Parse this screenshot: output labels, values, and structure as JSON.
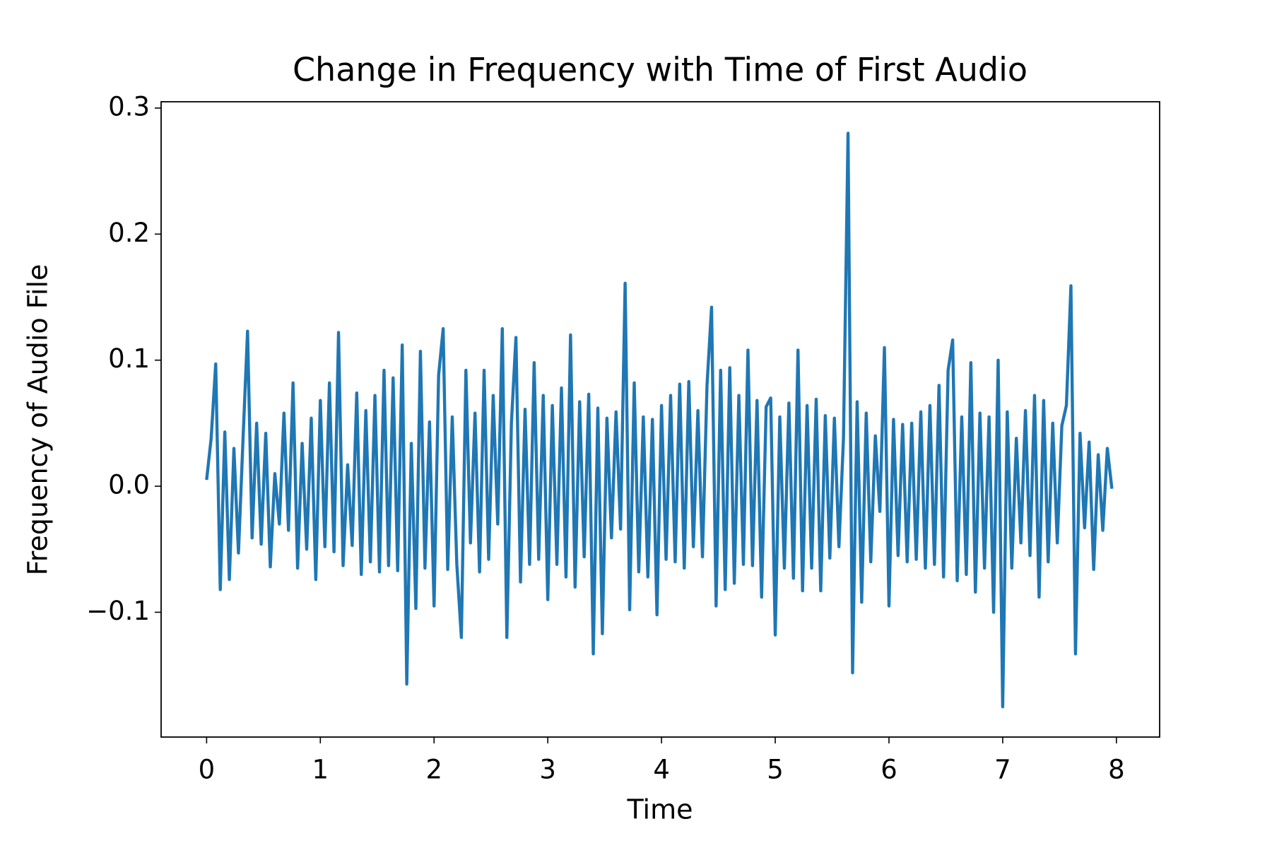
{
  "chart_data": {
    "type": "line",
    "title": "Change in Frequency with Time of First Audio",
    "x_label": "Time",
    "y_label": "Frequency of Audio File",
    "color": "#1f77b4",
    "xlim": [
      -0.4,
      8.38
    ],
    "ylim": [
      -0.199,
      0.305
    ],
    "xticks": [
      0,
      1,
      2,
      3,
      4,
      5,
      6,
      7,
      8
    ],
    "yticks": [
      {
        "value": -0.1,
        "label": "−0.1"
      },
      {
        "value": 0,
        "label": "0.0"
      },
      0.1,
      0.2,
      0.3
    ],
    "x": [
      0,
      0.04,
      0.08,
      0.12,
      0.16,
      0.2,
      0.24,
      0.28,
      0.32,
      0.36,
      0.4,
      0.44,
      0.48,
      0.52,
      0.56,
      0.6,
      0.64,
      0.68,
      0.72,
      0.76,
      0.8,
      0.84,
      0.88,
      0.92,
      0.96,
      1,
      1.04,
      1.08,
      1.12,
      1.16,
      1.2,
      1.24,
      1.28,
      1.32,
      1.36,
      1.4,
      1.44,
      1.48,
      1.52,
      1.56,
      1.6,
      1.64,
      1.68,
      1.72,
      1.76,
      1.8,
      1.84,
      1.88,
      1.92,
      1.96,
      2,
      2.04,
      2.08,
      2.12,
      2.16,
      2.2,
      2.24,
      2.28,
      2.32,
      2.36,
      2.4,
      2.44,
      2.48,
      2.52,
      2.56,
      2.6,
      2.64,
      2.68,
      2.72,
      2.76,
      2.8,
      2.84,
      2.88,
      2.92,
      2.96,
      3,
      3.04,
      3.08,
      3.12,
      3.16,
      3.2,
      3.24,
      3.28,
      3.32,
      3.36,
      3.4,
      3.44,
      3.48,
      3.52,
      3.56,
      3.6,
      3.64,
      3.68,
      3.72,
      3.76,
      3.8,
      3.84,
      3.88,
      3.92,
      3.96,
      4,
      4.04,
      4.08,
      4.12,
      4.16,
      4.2,
      4.24,
      4.28,
      4.32,
      4.36,
      4.4,
      4.44,
      4.48,
      4.52,
      4.56,
      4.6,
      4.64,
      4.68,
      4.72,
      4.76,
      4.8,
      4.84,
      4.88,
      4.92,
      4.96,
      5,
      5.04,
      5.08,
      5.12,
      5.16,
      5.2,
      5.24,
      5.28,
      5.32,
      5.36,
      5.4,
      5.44,
      5.48,
      5.52,
      5.56,
      5.6,
      5.64,
      5.68,
      5.72,
      5.76,
      5.8,
      5.84,
      5.88,
      5.92,
      5.96,
      6,
      6.04,
      6.08,
      6.12,
      6.16,
      6.2,
      6.24,
      6.28,
      6.32,
      6.36,
      6.4,
      6.44,
      6.48,
      6.52,
      6.56,
      6.6,
      6.64,
      6.68,
      6.72,
      6.76,
      6.8,
      6.84,
      6.88,
      6.92,
      6.96,
      7,
      7.04,
      7.08,
      7.12,
      7.16,
      7.2,
      7.24,
      7.28,
      7.32,
      7.36,
      7.4,
      7.44,
      7.48,
      7.52,
      7.56,
      7.6,
      7.64,
      7.68,
      7.72,
      7.76,
      7.8,
      7.84,
      7.88,
      7.92,
      7.96
    ],
    "values": [
      0.005,
      0.038,
      0.097,
      -0.082,
      0.043,
      -0.074,
      0.03,
      -0.053,
      0.037,
      0.123,
      -0.041,
      0.05,
      -0.046,
      0.042,
      -0.064,
      0.01,
      -0.03,
      0.058,
      -0.035,
      0.082,
      -0.065,
      0.034,
      -0.05,
      0.054,
      -0.074,
      0.068,
      -0.048,
      0.082,
      -0.052,
      0.122,
      -0.063,
      0.017,
      -0.047,
      0.074,
      -0.07,
      0.06,
      -0.06,
      0.072,
      -0.068,
      0.092,
      -0.063,
      0.086,
      -0.067,
      0.112,
      -0.157,
      0.034,
      -0.097,
      0.107,
      -0.065,
      0.051,
      -0.095,
      0.088,
      0.125,
      -0.066,
      0.055,
      -0.062,
      -0.12,
      0.092,
      -0.045,
      0.058,
      -0.068,
      0.092,
      -0.058,
      0.072,
      -0.03,
      0.125,
      -0.12,
      0.05,
      0.118,
      -0.076,
      0.061,
      -0.062,
      0.098,
      -0.058,
      0.072,
      -0.09,
      0.064,
      -0.062,
      0.078,
      -0.072,
      0.12,
      -0.08,
      0.067,
      -0.056,
      0.073,
      -0.133,
      0.062,
      -0.117,
      0.054,
      -0.041,
      0.059,
      -0.034,
      0.161,
      -0.098,
      0.082,
      -0.068,
      0.055,
      -0.072,
      0.053,
      -0.102,
      0.064,
      -0.058,
      0.072,
      -0.06,
      0.081,
      -0.065,
      0.083,
      -0.048,
      0.06,
      -0.056,
      0.08,
      0.142,
      -0.095,
      0.092,
      -0.082,
      0.094,
      -0.077,
      0.072,
      -0.062,
      0.108,
      -0.063,
      0.068,
      -0.088,
      0.063,
      0.07,
      -0.118,
      0.055,
      -0.065,
      0.066,
      -0.073,
      0.108,
      -0.083,
      0.064,
      -0.065,
      0.069,
      -0.083,
      0.056,
      -0.057,
      0.054,
      -0.048,
      0.038,
      0.28,
      -0.148,
      0.067,
      -0.092,
      0.058,
      -0.06,
      0.04,
      -0.02,
      0.11,
      -0.095,
      0.053,
      -0.055,
      0.049,
      -0.06,
      0.05,
      -0.058,
      0.059,
      -0.065,
      0.064,
      -0.062,
      0.08,
      -0.072,
      0.092,
      0.116,
      -0.075,
      0.055,
      -0.07,
      0.098,
      -0.084,
      0.058,
      -0.065,
      0.055,
      -0.1,
      0.1,
      -0.175,
      0.059,
      -0.065,
      0.038,
      -0.045,
      0.06,
      -0.055,
      0.072,
      -0.088,
      0.068,
      -0.06,
      0.05,
      -0.045,
      0.048,
      0.064,
      0.159,
      -0.133,
      0.042,
      -0.033,
      0.035,
      -0.066,
      0.025,
      -0.035,
      0.03,
      -0.002
    ]
  }
}
